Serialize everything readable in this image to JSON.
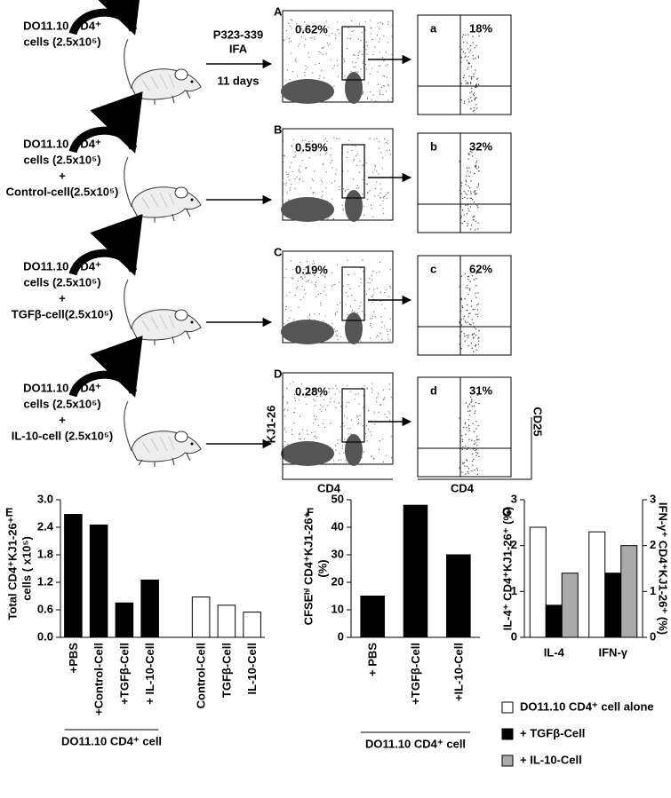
{
  "treatment": [
    "P323-339",
    "IFA",
    "11 days"
  ],
  "panels": [
    {
      "letter": "A",
      "label_lines": [
        "DO11.10 CD4⁺",
        "cells (2.5x10⁵)"
      ],
      "gate_pct": "0.62%",
      "sub_letter": "a",
      "sub_pct": "18%"
    },
    {
      "letter": "B",
      "label_lines": [
        "DO11.10 CD4⁺",
        "cells (2.5x10⁵)",
        "+",
        "Control-cell(2.5x10⁵)"
      ],
      "gate_pct": "0.59%",
      "sub_letter": "b",
      "sub_pct": "32%"
    },
    {
      "letter": "C",
      "label_lines": [
        "DO11.10 CD4⁺",
        "cells (2.5x10⁵)",
        "+",
        "TGFβ-cell(2.5x10⁵)"
      ],
      "gate_pct": "0.19%",
      "sub_letter": "c",
      "sub_pct": "62%"
    },
    {
      "letter": "D",
      "label_lines": [
        "DO11.10 CD4⁺",
        "cells (2.5x10⁵)",
        "+",
        "IL-10-cell (2.5x10⁵)"
      ],
      "gate_pct": "0.28%",
      "sub_letter": "d",
      "sub_pct": "31%"
    }
  ],
  "axes": {
    "y_main": "KJ1-26",
    "x_main": "CD4",
    "x_sub": "CD4",
    "y_sub": "CD25"
  },
  "chart_data": [
    {
      "type": "bar",
      "panel": "E",
      "ylabel": [
        "Total CD4⁺KJ1-26⁺",
        "cells ( x10⁵)"
      ],
      "categories": [
        "+PBS",
        "+Control-Cell",
        "+TGFβ-Cell",
        "+ IL-10-Cell",
        "Control-Cell",
        "TGFβ-Cell",
        "IL-10-Cell"
      ],
      "values": [
        2.68,
        2.45,
        0.75,
        1.25,
        0.88,
        0.7,
        0.55
      ],
      "colors": [
        "#000000",
        "#000000",
        "#000000",
        "#000000",
        "#ffffff",
        "#ffffff",
        "#ffffff"
      ],
      "ylim": [
        0,
        3
      ],
      "yticks": [
        {
          "value": 0,
          "label": "0.0"
        },
        0.6,
        1.2,
        1.8,
        2.4,
        {
          "value": 3,
          "label": "3.0"
        }
      ],
      "group_label": "DO11.10 CD4⁺ cell"
    },
    {
      "type": "bar",
      "panel": "F",
      "ylabel": [
        "CFSEʰⁱ CD4⁺KJ1-26⁺",
        "(%)"
      ],
      "categories": [
        "+ PBS",
        "+TGFβ-Cell",
        "+IL-10-Cell"
      ],
      "values": [
        15,
        48,
        30
      ],
      "colors": [
        "#000000",
        "#000000",
        "#000000"
      ],
      "ylim": [
        0,
        50
      ],
      "yticks": [
        0,
        10,
        20,
        30,
        40,
        50
      ],
      "group_label": "DO11.10 CD4⁺ cell"
    },
    {
      "type": "grouped_bar",
      "panel": "G",
      "ylabel": "IL-4⁺ CD4⁺KJ1-26⁺ (%)",
      "y2label": "IFN-γ⁺ CD4⁺KJ1-26⁺ (%)",
      "categories": [
        "IL-4",
        "IFN-γ"
      ],
      "series": [
        {
          "name": "DO11.10 CD4⁺ cell alone",
          "color": "#ffffff",
          "values": [
            2.4,
            2.3
          ]
        },
        {
          "name": "+ TGFβ-Cell",
          "color": "#000000",
          "values": [
            0.7,
            1.4
          ]
        },
        {
          "name": "+ IL-10-Cell",
          "color": "#aaaaaa",
          "values": [
            1.4,
            2.0
          ]
        }
      ],
      "ylim": [
        0,
        3
      ],
      "yticks": [
        0,
        1,
        2,
        3
      ],
      "y2lim": [
        0,
        3
      ],
      "y2ticks": [
        0,
        1,
        2,
        3
      ],
      "legend": "bottom"
    }
  ]
}
